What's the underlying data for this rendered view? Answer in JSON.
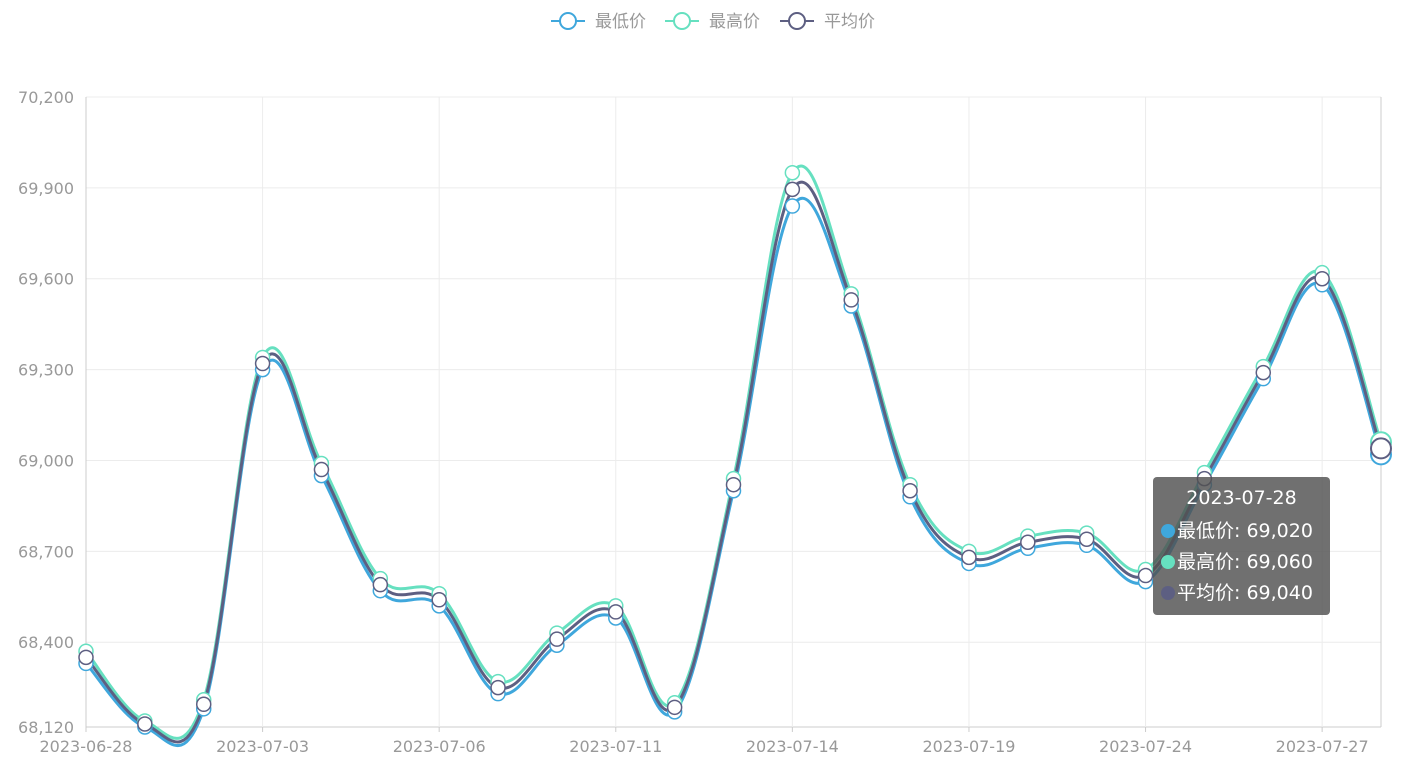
{
  "chart_data": {
    "type": "line",
    "x": [
      "2023-06-28",
      "2023-06-29",
      "2023-07-01",
      "2023-07-03",
      "2023-07-04",
      "2023-07-05",
      "2023-07-06",
      "2023-07-07",
      "2023-07-10",
      "2023-07-11",
      "2023-07-12",
      "2023-07-13",
      "2023-07-14",
      "2023-07-17",
      "2023-07-18",
      "2023-07-19",
      "2023-07-20",
      "2023-07-21",
      "2023-07-24",
      "2023-07-25",
      "2023-07-26",
      "2023-07-27",
      "2023-07-28"
    ],
    "x_tick_labels": [
      "2023-06-28",
      "2023-07-03",
      "2023-07-06",
      "2023-07-11",
      "2023-07-14",
      "2023-07-19",
      "2023-07-24",
      "2023-07-27"
    ],
    "y_tick_labels": [
      "70,200",
      "69,900",
      "69,600",
      "69,300",
      "69,000",
      "68,700",
      "68,400",
      "68,120"
    ],
    "ylim": [
      68120,
      70200
    ],
    "series": [
      {
        "name": "最低价",
        "color": "#3fa7dc",
        "values": [
          68330,
          68120,
          68180,
          69300,
          68950,
          68570,
          68520,
          68230,
          68390,
          68480,
          68170,
          68900,
          69840,
          69510,
          68880,
          68660,
          68710,
          68720,
          68600,
          68920,
          69270,
          69580,
          69020
        ]
      },
      {
        "name": "最高价",
        "color": "#66e0c0",
        "values": [
          68370,
          68140,
          68210,
          69340,
          68990,
          68610,
          68560,
          68270,
          68430,
          68520,
          68200,
          68940,
          69950,
          69550,
          68920,
          68700,
          68750,
          68760,
          68640,
          68960,
          69310,
          69620,
          69060
        ]
      },
      {
        "name": "平均价",
        "color": "#5d5f82",
        "values": [
          68350,
          68130,
          68195,
          69320,
          68970,
          68590,
          68540,
          68250,
          68410,
          68500,
          68185,
          68920,
          69895,
          69530,
          68900,
          68680,
          68730,
          68740,
          68620,
          68940,
          69290,
          69600,
          69040
        ]
      }
    ],
    "legend_position": "top-center",
    "grid": true,
    "tooltip": {
      "title": "2023-07-28",
      "rows": [
        {
          "label": "最低价: 69,020",
          "color": "#3fa7dc"
        },
        {
          "label": "最高价: 69,060",
          "color": "#66e0c0"
        },
        {
          "label": "平均价: 69,040",
          "color": "#5d5f82"
        }
      ]
    }
  }
}
